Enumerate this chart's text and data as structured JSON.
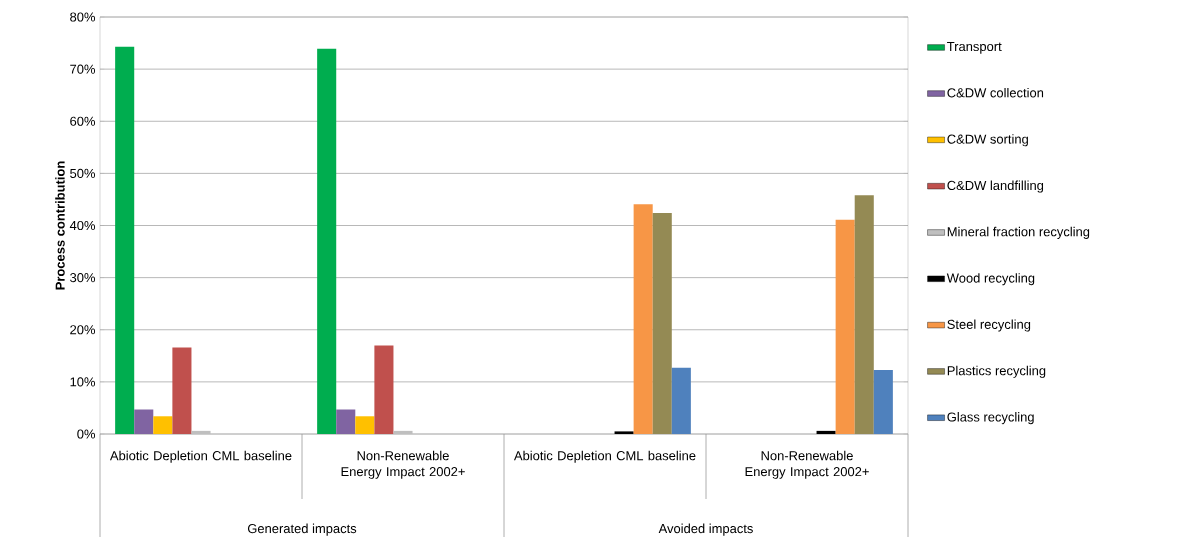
{
  "chart_data": {
    "type": "bar",
    "ylabel": "Process contribution",
    "categories": [
      "Abiotic Depletion CML baseline",
      "Non-Renewable Energy Impact 2002+",
      "Abiotic Depletion CML baseline",
      "Non-Renewable Energy Impact 2002+"
    ],
    "annotations": [
      "Generated impacts",
      "Avoided impacts"
    ],
    "series": [
      {
        "name": "Transport",
        "color": "#00ad4f",
        "values": [
          74.3,
          73.9,
          null,
          null
        ]
      },
      {
        "name": "C&DW collection",
        "color": "#8064a2",
        "values": [
          4.7,
          4.7,
          null,
          null
        ]
      },
      {
        "name": "C&DW sorting",
        "color": "#ffc000",
        "values": [
          3.4,
          3.4,
          null,
          null
        ]
      },
      {
        "name": "C&DW landfilling",
        "color": "#c0504d",
        "values": [
          16.6,
          17.0,
          null,
          null
        ]
      },
      {
        "name": "Mineral fraction recycling",
        "color": "#bfbfbf",
        "values": [
          0.6,
          0.6,
          null,
          null
        ]
      },
      {
        "name": "Wood recycling",
        "color": "#000000",
        "values": [
          null,
          null,
          0.5,
          0.6
        ]
      },
      {
        "name": "Steel recycling",
        "color": "#f79646",
        "values": [
          null,
          null,
          44.1,
          41.1
        ]
      },
      {
        "name": "Plastics recycling",
        "color": "#948a54",
        "values": [
          null,
          null,
          42.4,
          45.8
        ]
      },
      {
        "name": "Glass recycling",
        "color": "#4f81bd",
        "values": [
          null,
          null,
          12.7,
          12.3
        ]
      }
    ],
    "ylim": [
      0,
      80
    ],
    "yticks": [
      {
        "value": 0,
        "label": "0%"
      },
      {
        "value": 10,
        "label": "10%"
      },
      {
        "value": 20,
        "label": "20%"
      },
      {
        "value": 30,
        "label": "30%"
      },
      {
        "value": 40,
        "label": "40%"
      },
      {
        "value": 50,
        "label": "50%"
      },
      {
        "value": 60,
        "label": "60%"
      },
      {
        "value": 70,
        "label": "70%"
      },
      {
        "value": 80,
        "label": "80%"
      }
    ],
    "grid": "y",
    "legend": "right"
  }
}
